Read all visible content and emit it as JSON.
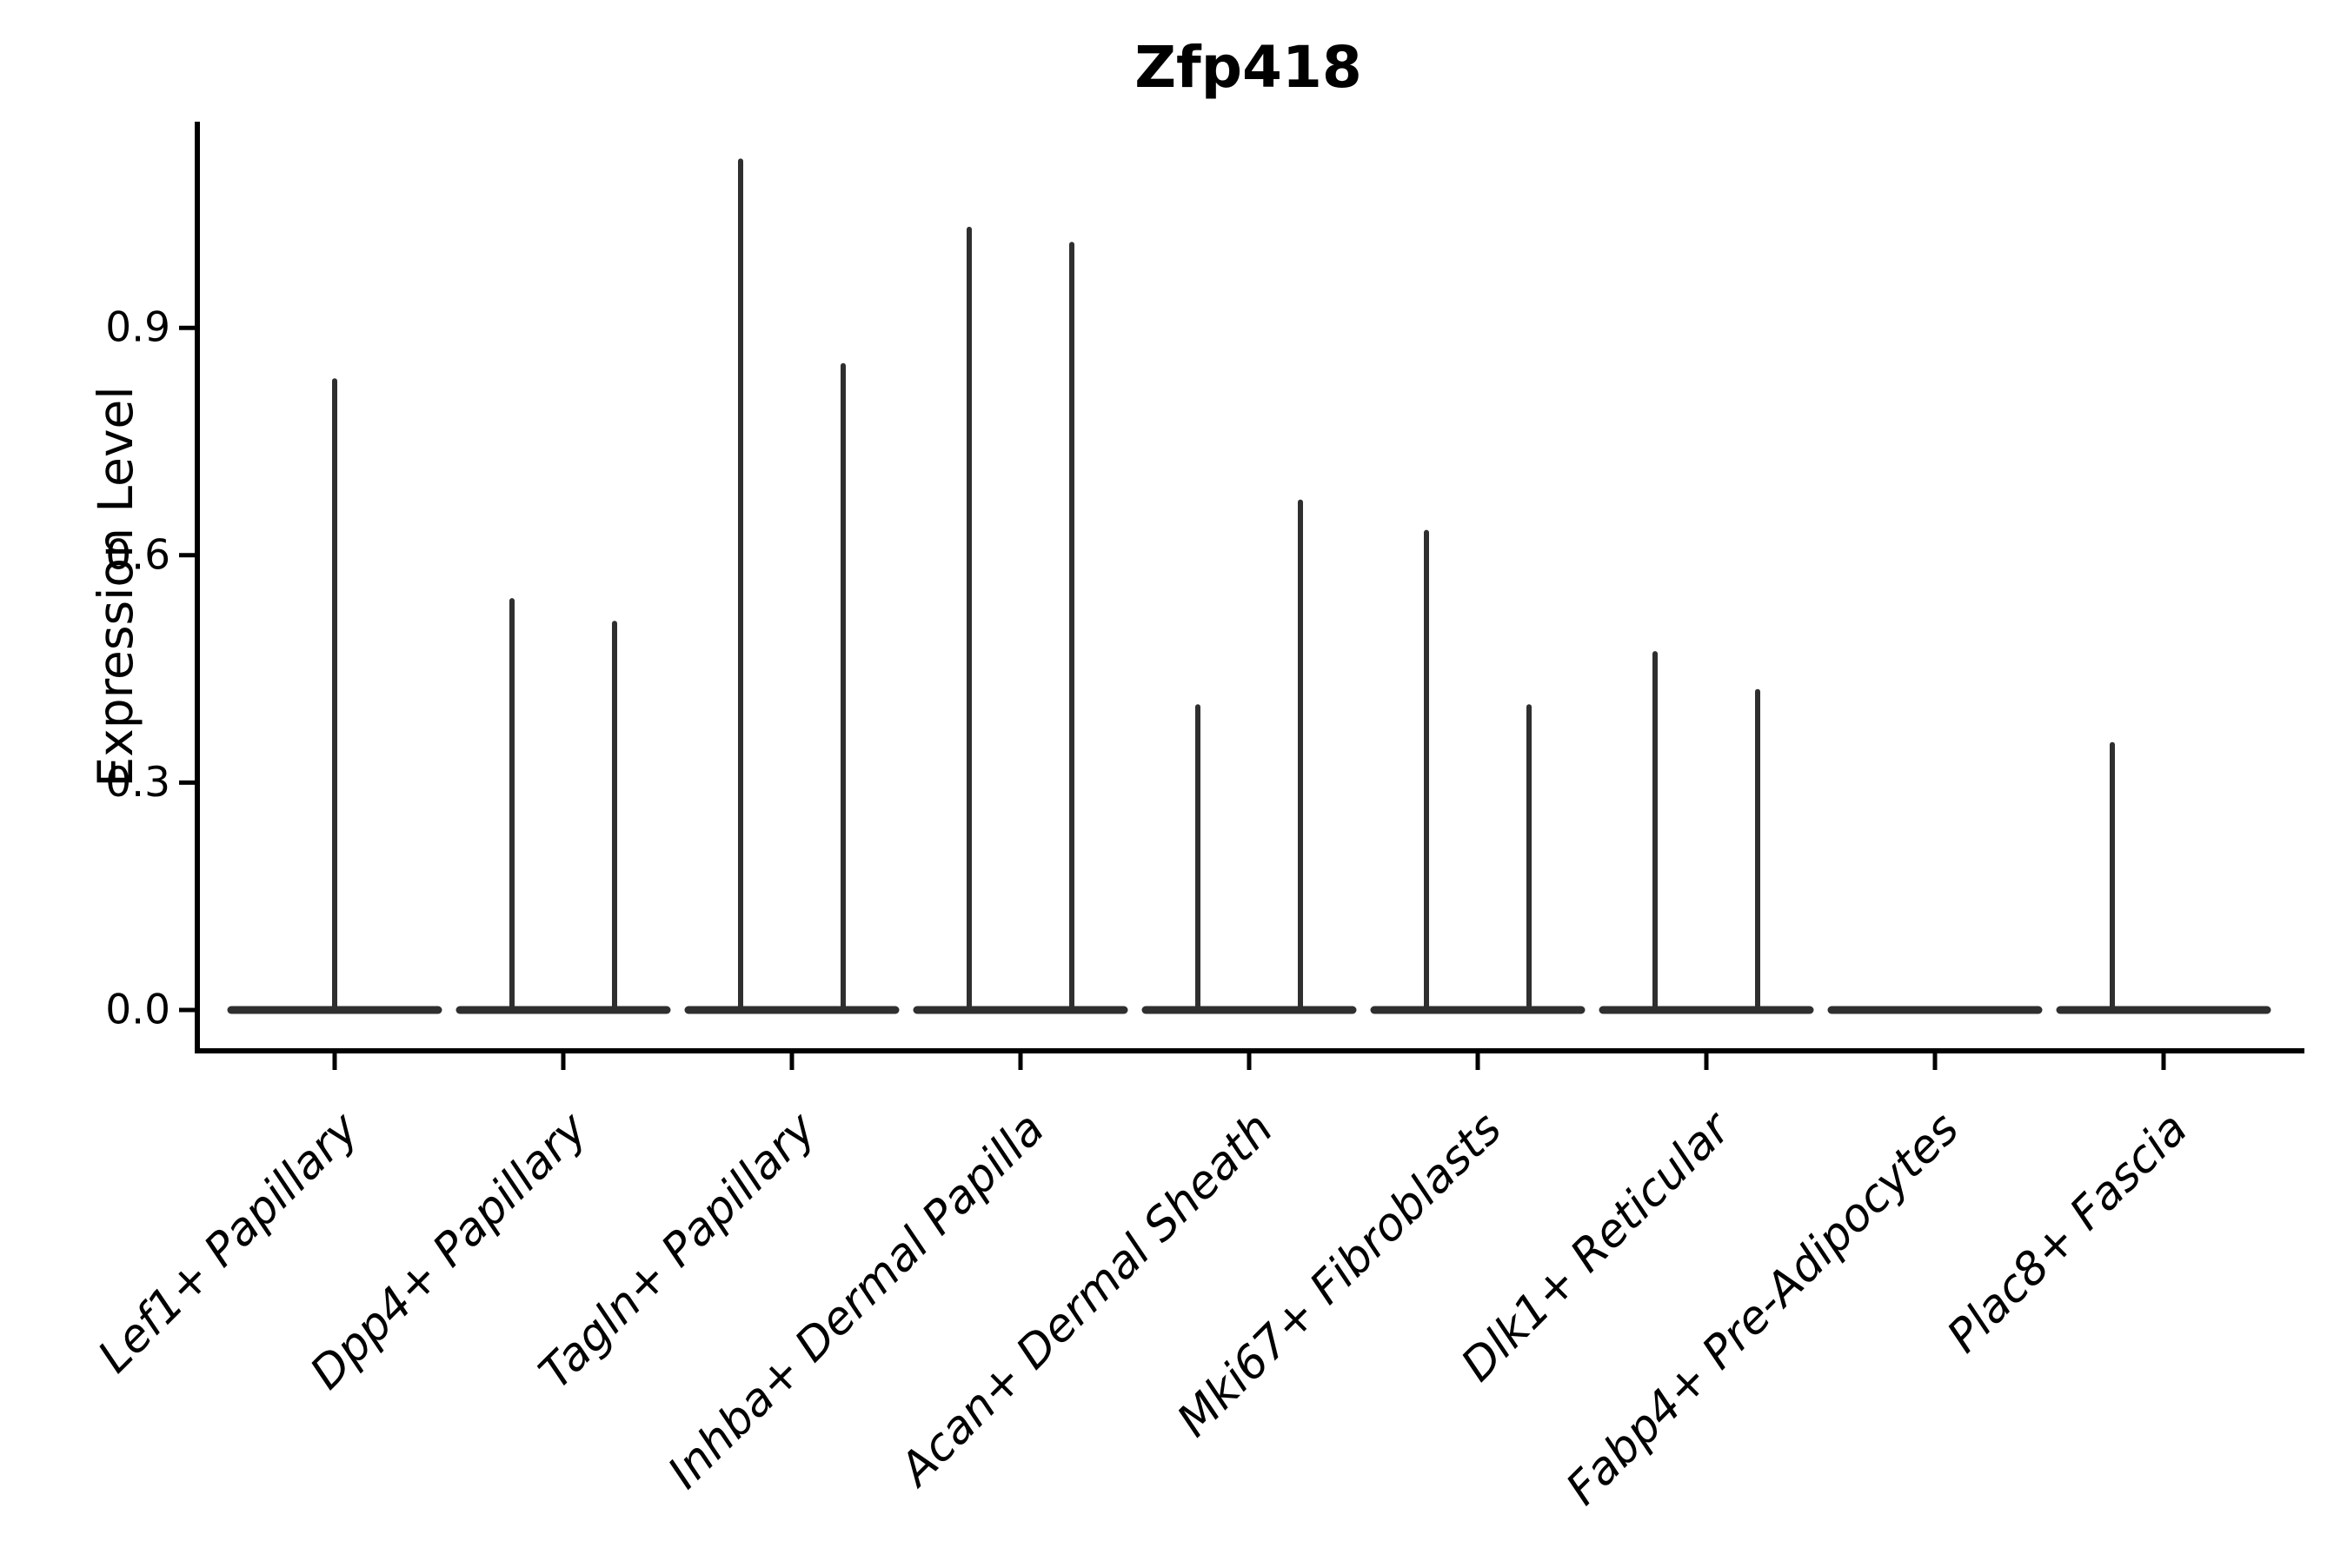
{
  "title": "Zfp418",
  "y_axis": {
    "label": "Expression Level",
    "tick_labels": [
      "0.0",
      "0.3",
      "0.6",
      "0.9"
    ]
  },
  "x_axis": {
    "categories": [
      "Lef1+ Papillary",
      "Dpp4+ Papillary",
      "Tagln+ Papillary",
      "Inhba+ Dermal Papilla",
      "Acan+ Dermal Sheath",
      "Mki67+ Fibroblasts",
      "Dlk1+ Reticular",
      "Fabp4+ Pre-Adipocytes",
      "Plac8+ Fascia"
    ]
  },
  "colors": {
    "violin": "#2f2f2f",
    "axis": "#000000",
    "text": "#000000",
    "background": "#ffffff"
  },
  "chart_data": {
    "type": "violin",
    "title": "Zfp418",
    "xlabel": "",
    "ylabel": "Expression Level",
    "ylim": [
      -0.05,
      1.17
    ],
    "yticks": [
      0.0,
      0.3,
      0.6,
      0.9
    ],
    "grid": false,
    "legend": "none",
    "x_tick_rotation": 45,
    "x_tick_style": "italic",
    "description": "Violin plot of Zfp418 expression; each violin is collapsed flat at 0 with thin density spikes reaching the listed maxima",
    "categories": [
      "Lef1+ Papillary",
      "Dpp4+ Papillary",
      "Tagln+ Papillary",
      "Inhba+ Dermal Papilla",
      "Acan+ Dermal Sheath",
      "Mki67+ Fibroblasts",
      "Dlk1+ Reticular",
      "Fabp4+ Pre-Adipocytes",
      "Plac8+ Fascia"
    ],
    "violins": [
      {
        "category": "Lef1+ Papillary",
        "baseline_value": 0,
        "spikes": [
          {
            "position": "center",
            "value": 0.83
          }
        ]
      },
      {
        "category": "Dpp4+ Papillary",
        "baseline_value": 0,
        "spikes": [
          {
            "position": "left",
            "value": 0.54
          },
          {
            "position": "right",
            "value": 0.51
          }
        ]
      },
      {
        "category": "Tagln+ Papillary",
        "baseline_value": 0,
        "spikes": [
          {
            "position": "left",
            "value": 1.12
          },
          {
            "position": "right",
            "value": 0.85
          }
        ]
      },
      {
        "category": "Inhba+ Dermal Papilla",
        "baseline_value": 0,
        "spikes": [
          {
            "position": "left",
            "value": 1.03
          },
          {
            "position": "right",
            "value": 1.01
          }
        ]
      },
      {
        "category": "Acan+ Dermal Sheath",
        "baseline_value": 0,
        "spikes": [
          {
            "position": "left",
            "value": 0.4
          },
          {
            "position": "right",
            "value": 0.67
          }
        ]
      },
      {
        "category": "Mki67+ Fibroblasts",
        "baseline_value": 0,
        "spikes": [
          {
            "position": "left",
            "value": 0.63
          },
          {
            "position": "right",
            "value": 0.4
          }
        ]
      },
      {
        "category": "Dlk1+ Reticular",
        "baseline_value": 0,
        "spikes": [
          {
            "position": "left",
            "value": 0.47
          },
          {
            "position": "right",
            "value": 0.42
          }
        ]
      },
      {
        "category": "Fabp4+ Pre-Adipocytes",
        "baseline_value": 0,
        "spikes": []
      },
      {
        "category": "Plac8+ Fascia",
        "baseline_value": 0,
        "spikes": [
          {
            "position": "left",
            "value": 0.35
          }
        ]
      }
    ]
  }
}
